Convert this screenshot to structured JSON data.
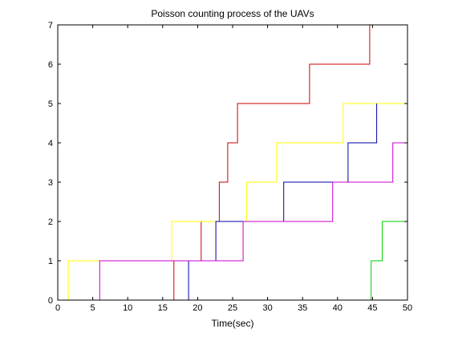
{
  "chart_data": {
    "type": "line",
    "title": "Poisson counting process of the UAVs",
    "xlabel": "Time(sec)",
    "ylabel": "",
    "xlim": [
      0,
      50
    ],
    "ylim": [
      0,
      7
    ],
    "xticks": [
      "0",
      "5",
      "10",
      "15",
      "20",
      "25",
      "30",
      "35",
      "40",
      "45",
      "50"
    ],
    "yticks": [
      "0",
      "1",
      "2",
      "3",
      "4",
      "5",
      "6",
      "7"
    ],
    "grid": false,
    "legend": "none",
    "step": true,
    "series": [
      {
        "color": "#cc0000",
        "x": [
          0,
          16.6,
          20.5,
          23.1,
          24.3,
          25.7,
          36.0,
          44.6
        ],
        "y": [
          0,
          1,
          2,
          3,
          4,
          5,
          6,
          7
        ]
      },
      {
        "color": "#ffff00",
        "x": [
          0,
          1.5,
          16.3,
          27.0,
          31.3,
          40.8,
          50
        ],
        "y": [
          0,
          1,
          2,
          3,
          4,
          5,
          5
        ]
      },
      {
        "color": "#0000aa",
        "x": [
          0,
          18.7,
          22.6,
          32.3,
          41.5,
          45.6
        ],
        "y": [
          0,
          1,
          2,
          3,
          4,
          5
        ]
      },
      {
        "color": "#cc00cc",
        "x": [
          0,
          6.0,
          26.5,
          39.3,
          47.9,
          50
        ],
        "y": [
          0,
          1,
          2,
          3,
          4,
          4
        ]
      },
      {
        "color": "#00cc00",
        "x": [
          0,
          44.8,
          46.4,
          50
        ],
        "y": [
          0,
          1,
          2,
          2
        ]
      }
    ]
  }
}
